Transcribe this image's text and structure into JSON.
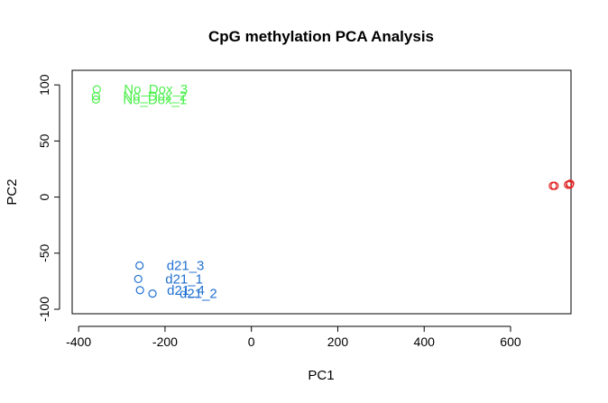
{
  "chart_data": {
    "type": "scatter",
    "title": "CpG methylation PCA Analysis",
    "xlabel": "PC1",
    "ylabel": "PC2",
    "xlim": [
      -415,
      740
    ],
    "ylim": [
      -104,
      113
    ],
    "x_ticks": [
      -400,
      -200,
      0,
      200,
      400,
      600
    ],
    "y_ticks": [
      -100,
      -50,
      0,
      50,
      100
    ],
    "x_tick_labels": [
      "-400",
      "-200",
      "0",
      "200",
      "400",
      "600"
    ],
    "y_tick_labels": [
      "-100",
      "-50",
      "0",
      "50",
      "100"
    ],
    "grid": false,
    "legend": "none",
    "series": [
      {
        "color": "#4ef04e",
        "points": [
          {
            "x": -358,
            "y": 96,
            "label": "No_Dox_3"
          },
          {
            "x": -360,
            "y": 90,
            "label": "No_Dox_2"
          },
          {
            "x": -360,
            "y": 87,
            "label": "No_Dox_1"
          }
        ]
      },
      {
        "color": "#1f6fd0",
        "points": [
          {
            "x": -259,
            "y": -61,
            "label": "d21_3"
          },
          {
            "x": -262,
            "y": -73,
            "label": "d21_1"
          },
          {
            "x": -258,
            "y": -83,
            "label": "d21_4"
          },
          {
            "x": -229,
            "y": -86,
            "label": "d21_2"
          }
        ]
      },
      {
        "color": "#e02020",
        "points": [
          {
            "x": 698,
            "y": 10
          },
          {
            "x": 702,
            "y": 10
          },
          {
            "x": 733,
            "y": 11
          },
          {
            "x": 737,
            "y": 11
          },
          {
            "x": 738,
            "y": 12
          }
        ]
      }
    ]
  }
}
